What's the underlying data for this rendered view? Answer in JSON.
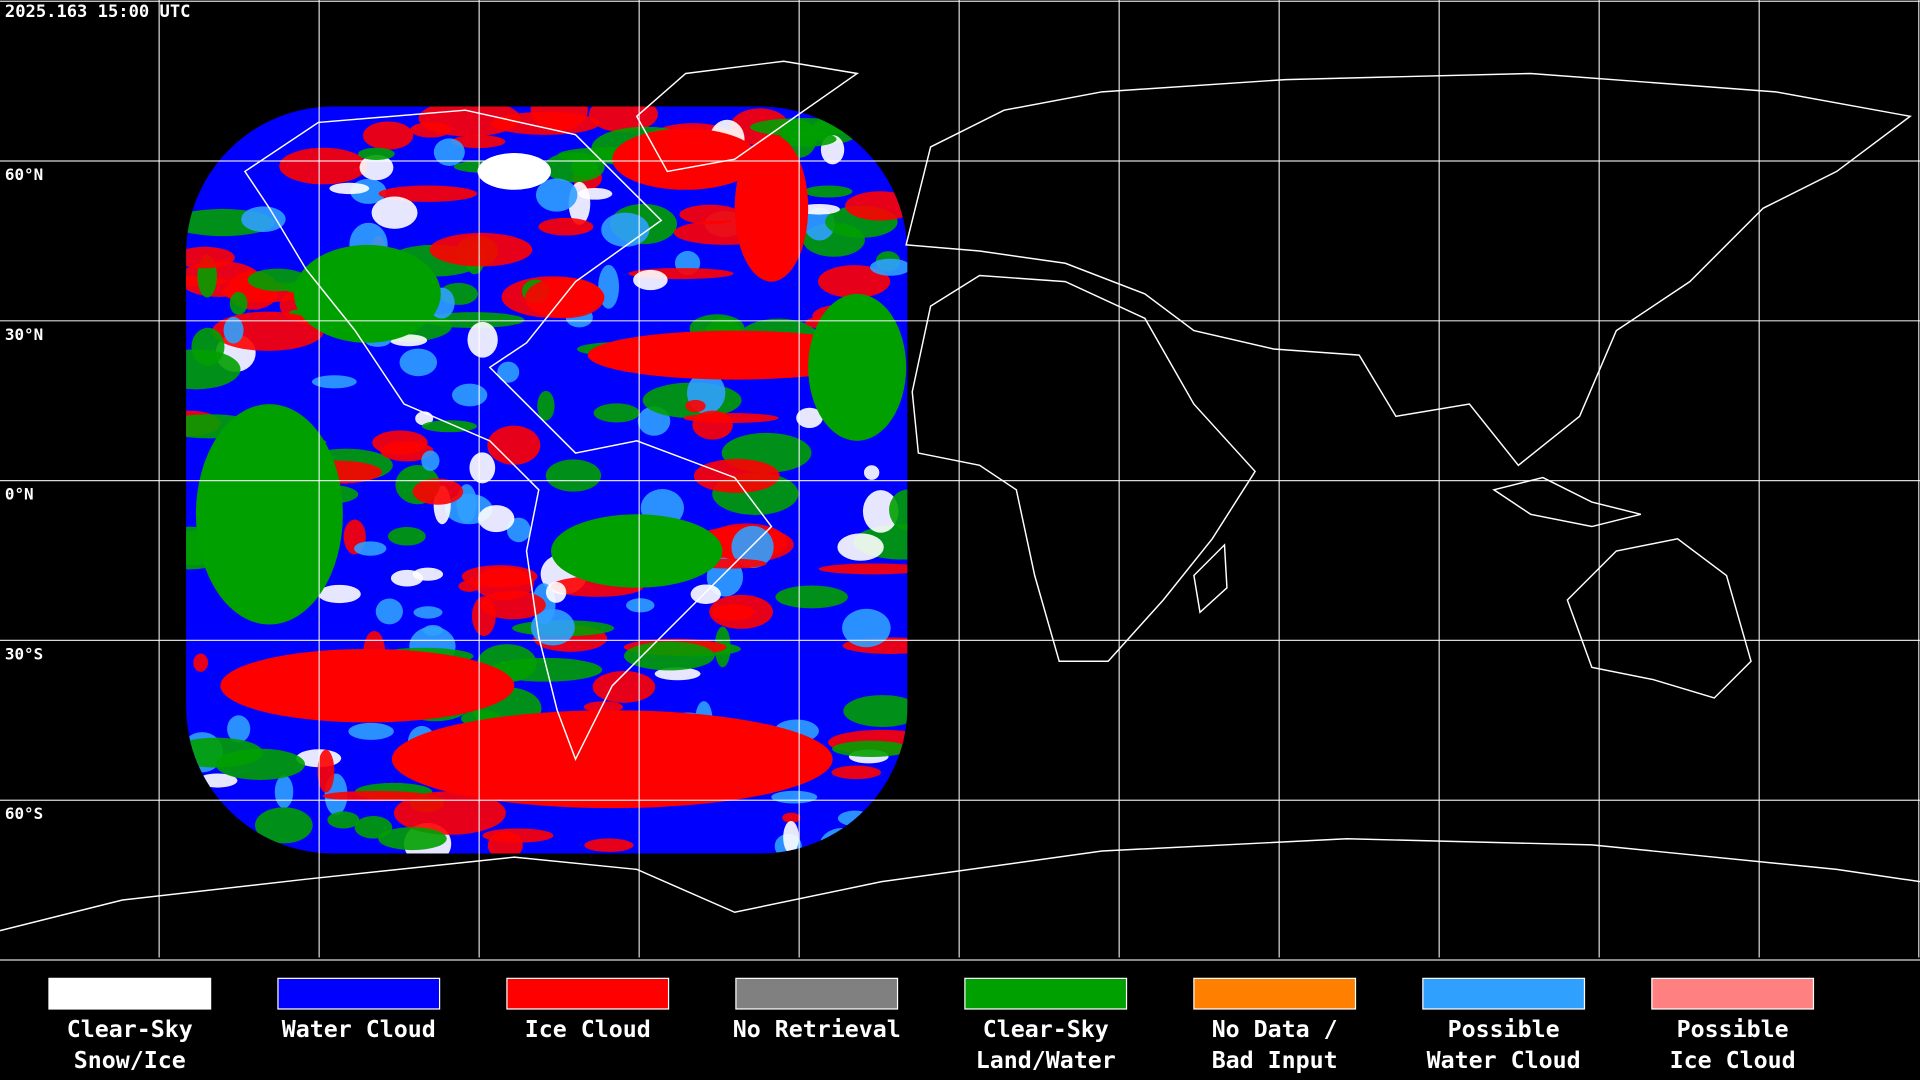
{
  "header": {
    "timestamp": "2025.163 15:00 UTC"
  },
  "map": {
    "latitude_labels": [
      "60°N",
      "30°N",
      "0°N",
      "30°S",
      "60°S"
    ]
  },
  "legend": [
    {
      "lines": [
        "Clear-Sky",
        "Snow/Ice"
      ],
      "color": "#ffffff"
    },
    {
      "lines": [
        "Water Cloud"
      ],
      "color": "#0000ff"
    },
    {
      "lines": [
        "Ice Cloud"
      ],
      "color": "#ff0000"
    },
    {
      "lines": [
        "No Retrieval"
      ],
      "color": "#808080"
    },
    {
      "lines": [
        "Clear-Sky",
        "Land/Water"
      ],
      "color": "#00a000"
    },
    {
      "lines": [
        "No Data /",
        "Bad Input"
      ],
      "color": "#ff8000"
    },
    {
      "lines": [
        "Possible",
        "Water Cloud"
      ],
      "color": "#30a0ff"
    },
    {
      "lines": [
        "Possible",
        "Ice Cloud"
      ],
      "color": "#ff8080"
    }
  ]
}
